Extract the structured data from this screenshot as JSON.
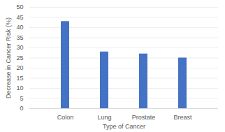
{
  "chart_data": {
    "type": "bar",
    "x_label": "Type of Cancer",
    "y_label": "Decrease in Cancer Risk (%)",
    "categories": [
      "Colon",
      "Lung",
      "Prostate",
      "Breast"
    ],
    "values": [
      43,
      28,
      27,
      25
    ],
    "color": "#4472c4",
    "ylim": [
      0,
      50
    ],
    "yticks": [
      0,
      5,
      10,
      15,
      20,
      25,
      30,
      35,
      40,
      45,
      50
    ],
    "grid": true
  }
}
